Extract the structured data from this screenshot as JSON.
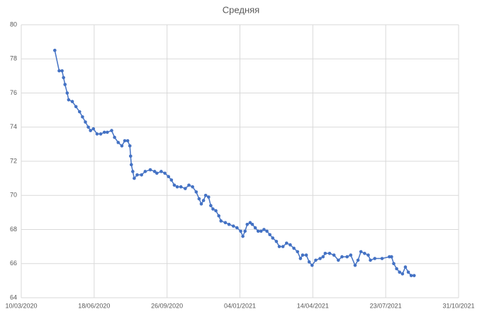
{
  "chart_data": {
    "type": "line",
    "title": "Средняя",
    "x": [
      "2020-04-25",
      "2020-05-01",
      "2020-05-05",
      "2020-05-07",
      "2020-05-09",
      "2020-05-12",
      "2020-05-14",
      "2020-05-19",
      "2020-05-24",
      "2020-05-29",
      "2020-06-02",
      "2020-06-06",
      "2020-06-10",
      "2020-06-13",
      "2020-06-17",
      "2020-06-22",
      "2020-06-27",
      "2020-07-02",
      "2020-07-06",
      "2020-07-12",
      "2020-07-16",
      "2020-07-21",
      "2020-07-26",
      "2020-07-30",
      "2020-08-03",
      "2020-08-06",
      "2020-08-07",
      "2020-08-08",
      "2020-08-10",
      "2020-08-12",
      "2020-08-16",
      "2020-08-22",
      "2020-08-27",
      "2020-09-03",
      "2020-09-09",
      "2020-09-12",
      "2020-09-18",
      "2020-09-23",
      "2020-09-28",
      "2020-10-02",
      "2020-10-06",
      "2020-10-10",
      "2020-10-15",
      "2020-10-21",
      "2020-10-26",
      "2020-10-31",
      "2020-11-05",
      "2020-11-09",
      "2020-11-12",
      "2020-11-15",
      "2020-11-18",
      "2020-11-22",
      "2020-11-25",
      "2020-11-28",
      "2020-12-02",
      "2020-12-06",
      "2020-12-09",
      "2020-12-15",
      "2020-12-20",
      "2020-12-26",
      "2020-12-31",
      "2021-01-05",
      "2021-01-08",
      "2021-01-11",
      "2021-01-14",
      "2021-01-18",
      "2021-01-21",
      "2021-01-25",
      "2021-01-29",
      "2021-02-02",
      "2021-02-06",
      "2021-02-10",
      "2021-02-14",
      "2021-02-18",
      "2021-02-23",
      "2021-02-27",
      "2021-03-04",
      "2021-03-09",
      "2021-03-14",
      "2021-03-19",
      "2021-03-24",
      "2021-03-28",
      "2021-03-31",
      "2021-04-05",
      "2021-04-09",
      "2021-04-13",
      "2021-04-18",
      "2021-04-24",
      "2021-04-28",
      "2021-05-01",
      "2021-05-07",
      "2021-05-13",
      "2021-05-19",
      "2021-05-24",
      "2021-05-31",
      "2021-06-05",
      "2021-06-11",
      "2021-06-15",
      "2021-06-19",
      "2021-06-24",
      "2021-06-29",
      "2021-07-02",
      "2021-07-08",
      "2021-07-18",
      "2021-07-28",
      "2021-07-31",
      "2021-08-03",
      "2021-08-07",
      "2021-08-11",
      "2021-08-15",
      "2021-08-19",
      "2021-08-23",
      "2021-08-27",
      "2021-08-31"
    ],
    "series": [
      {
        "name": "Средняя",
        "color": "#4472c4",
        "values": [
          78.5,
          77.3,
          77.3,
          76.9,
          76.5,
          76.0,
          75.6,
          75.5,
          75.2,
          74.9,
          74.6,
          74.3,
          74.0,
          73.8,
          73.9,
          73.6,
          73.6,
          73.7,
          73.7,
          73.8,
          73.4,
          73.1,
          72.9,
          73.2,
          73.2,
          72.9,
          72.3,
          71.8,
          71.4,
          71.0,
          71.2,
          71.2,
          71.4,
          71.5,
          71.4,
          71.3,
          71.4,
          71.3,
          71.1,
          70.9,
          70.6,
          70.5,
          70.5,
          70.4,
          70.6,
          70.5,
          70.2,
          69.8,
          69.5,
          69.7,
          70.0,
          69.9,
          69.4,
          69.2,
          69.1,
          68.8,
          68.5,
          68.4,
          68.3,
          68.2,
          68.1,
          67.9,
          67.6,
          67.9,
          68.3,
          68.4,
          68.3,
          68.1,
          67.9,
          67.9,
          68.0,
          67.9,
          67.7,
          67.5,
          67.3,
          67.0,
          67.0,
          67.2,
          67.1,
          66.9,
          66.7,
          66.3,
          66.5,
          66.5,
          66.1,
          65.9,
          66.2,
          66.3,
          66.4,
          66.6,
          66.6,
          66.5,
          66.2,
          66.4,
          66.4,
          66.5,
          65.9,
          66.2,
          66.7,
          66.6,
          66.5,
          66.2,
          66.3,
          66.3,
          66.4,
          66.4,
          66.0,
          65.7,
          65.5,
          65.4,
          65.8,
          65.5,
          65.3,
          65.3
        ]
      }
    ],
    "xlim": [
      "2020-03-10",
      "2021-10-31"
    ],
    "xticks": [
      {
        "value": "2020-03-10",
        "label": "10/03/2020"
      },
      {
        "value": "2020-06-18",
        "label": "18/06/2020"
      },
      {
        "value": "2020-09-26",
        "label": "26/09/2020"
      },
      {
        "value": "2021-01-04",
        "label": "04/01/2021"
      },
      {
        "value": "2021-04-14",
        "label": "14/04/2021"
      },
      {
        "value": "2021-07-23",
        "label": "23/07/2021"
      },
      {
        "value": "2021-10-31",
        "label": "31/10/2021"
      }
    ],
    "ylim": [
      64,
      80
    ],
    "yticks": [
      64,
      66,
      68,
      70,
      72,
      74,
      76,
      78,
      80
    ],
    "grid": true
  }
}
